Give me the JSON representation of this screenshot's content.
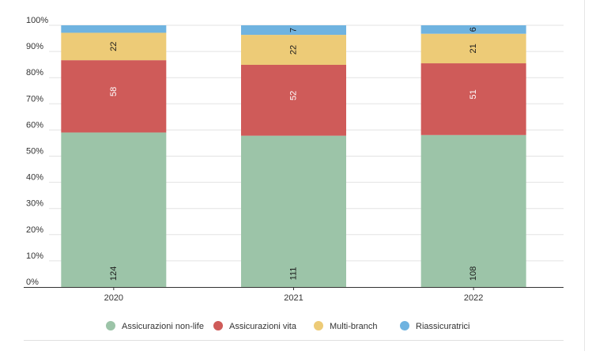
{
  "chart_data": {
    "type": "bar",
    "stacked": true,
    "normalized": true,
    "categories": [
      "2020",
      "2021",
      "2022"
    ],
    "series": [
      {
        "name": "Assicurazioni non-life",
        "color": "#9cc4a8",
        "values": [
          124,
          111,
          108
        ],
        "label_color": "#1a1a1a"
      },
      {
        "name": "Assicurazioni vita",
        "color": "#cf5b59",
        "values": [
          58,
          52,
          51
        ],
        "label_color": "#ffffff"
      },
      {
        "name": "Multi-branch",
        "color": "#edcb77",
        "values": [
          22,
          22,
          21
        ],
        "label_color": "#1a1a1a"
      },
      {
        "name": "Riassicuratrici",
        "color": "#6fb3e0",
        "values": [
          6,
          7,
          6
        ],
        "label_color": "#1a1a1a"
      }
    ],
    "data_labels": [
      [
        "124",
        "111",
        "108"
      ],
      [
        "58",
        "52",
        "51"
      ],
      [
        "22",
        "22",
        "21"
      ],
      [
        "",
        "7",
        "6"
      ]
    ],
    "yticks": [
      "0%",
      "10%",
      "20%",
      "30%",
      "40%",
      "50%",
      "60%",
      "70%",
      "80%",
      "90%",
      "100%"
    ],
    "ylim": [
      0,
      100
    ],
    "grid": true,
    "legend_position": "bottom",
    "title": "",
    "xlabel": "",
    "ylabel": ""
  }
}
